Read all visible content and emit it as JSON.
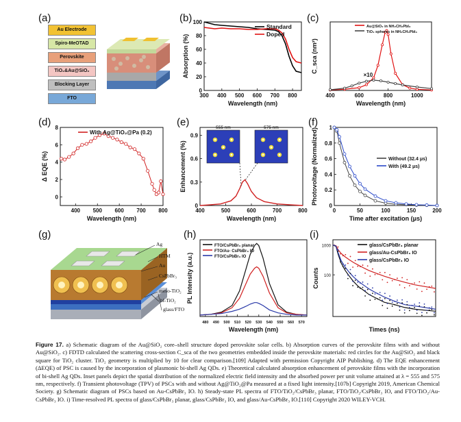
{
  "panels": {
    "a": {
      "label": "(a)",
      "layers": [
        "Au Electrode",
        "Spiro-MeOTAD",
        "Perovskite",
        "TiO₂&Au@SiO₂",
        "Blocking Layer",
        "FTO"
      ],
      "layer_colors": [
        "#f2c233",
        "#d7e7a6",
        "#e8a07a",
        "#f4c6c3",
        "#bfbfbf",
        "#78a8d8"
      ]
    },
    "b": {
      "label": "(b)",
      "chart_data": {
        "type": "line",
        "xlabel": "Wavelength (nm)",
        "ylabel": "Absorption (%)",
        "xlim": [
          300,
          850
        ],
        "ylim": [
          0,
          100
        ],
        "xticks": [
          300,
          400,
          500,
          600,
          700,
          800
        ],
        "yticks": [
          0,
          20,
          40,
          60,
          80,
          100
        ],
        "series": [
          {
            "name": "Standard",
            "color": "#000000",
            "x": [
              300,
              330,
              360,
              400,
              450,
              500,
              550,
              600,
              650,
              700,
              720,
              740,
              760,
              780,
              800,
              820,
              850
            ],
            "y": [
              100,
              98,
              96,
              95,
              94,
              93,
              92,
              90,
              89,
              88,
              86,
              80,
              68,
              50,
              36,
              28,
              26
            ]
          },
          {
            "name": "Doped",
            "color": "#e01010",
            "x": [
              300,
              330,
              360,
              400,
              450,
              500,
              550,
              600,
              650,
              700,
              720,
              740,
              760,
              780,
              800,
              820,
              850
            ],
            "y": [
              92,
              91,
              90,
              91,
              90,
              90,
              89,
              89,
              90,
              90,
              88,
              84,
              75,
              60,
              48,
              42,
              40
            ]
          }
        ]
      }
    },
    "c": {
      "label": "(c)",
      "chart_data": {
        "type": "line",
        "xlabel": "Wavelength (nm)",
        "ylabel": "C_sca (nm²)",
        "xlim": [
          400,
          1100
        ],
        "ylim": [
          0,
          300
        ],
        "xticks": [
          400,
          600,
          800,
          1000
        ],
        "annotation": "×10",
        "series": [
          {
            "name": "Au@SiO₂ in NH₂CH₂PbI₃",
            "color": "#e01010",
            "x": [
              400,
              500,
              600,
              650,
              700,
              730,
              760,
              780,
              790,
              800,
              820,
              850,
              900,
              950,
              1000,
              1100
            ],
            "y": [
              2,
              5,
              12,
              25,
              55,
              110,
              200,
              255,
              262,
              245,
              160,
              75,
              25,
              10,
              5,
              2
            ]
          },
          {
            "name": "TiO₂ spheres in NH₂CH₂PbI₃",
            "color": "#444444",
            "x": [
              400,
              500,
              550,
              600,
              650,
              700,
              750,
              800,
              850,
              900,
              1000,
              1100
            ],
            "y": [
              3,
              10,
              20,
              32,
              40,
              45,
              42,
              36,
              30,
              24,
              15,
              8
            ]
          }
        ]
      }
    },
    "d": {
      "label": "(d)",
      "chart_data": {
        "type": "line",
        "legend": "With Ag@TiO₂@Pa (0.2)",
        "xlabel": "Wavelength (nm)",
        "ylabel": "Δ EQE (%)",
        "xlim": [
          330,
          800
        ],
        "ylim": [
          -1,
          8
        ],
        "xticks": [
          400,
          500,
          600,
          700,
          800
        ],
        "yticks": [
          0,
          2,
          4,
          6,
          8
        ],
        "series": [
          {
            "name": "With Ag@TiO₂@Pa (0.2)",
            "color": "#d02020",
            "x": [
              335,
              350,
              370,
              390,
              410,
              430,
              450,
              470,
              490,
              510,
              530,
              550,
              570,
              590,
              610,
              630,
              650,
              670,
              690,
              710,
              730,
              750,
              760,
              770,
              780,
              790,
              800
            ],
            "y": [
              4.4,
              4.3,
              4.6,
              5.0,
              5.6,
              6.0,
              6.1,
              6.4,
              6.8,
              7.1,
              7.3,
              7.0,
              6.8,
              6.6,
              6.3,
              6.1,
              5.7,
              5.5,
              5.0,
              4.4,
              3.0,
              1.5,
              0.8,
              0.3,
              0.5,
              1.8,
              0.3
            ]
          }
        ]
      }
    },
    "e": {
      "label": "(e)",
      "inset_labels": [
        "555 nm",
        "575 nm"
      ],
      "chart_data": {
        "type": "line",
        "xlabel": "Wavelength (nm)",
        "ylabel": "Enhancement (%)",
        "xlim": [
          400,
          800
        ],
        "ylim": [
          0,
          1.0
        ],
        "xticks": [
          400,
          500,
          600,
          700,
          800
        ],
        "yticks": [
          0.0,
          0.3,
          0.6,
          0.9
        ],
        "series": [
          {
            "name": "Enhancement",
            "color": "#d02020",
            "x": [
              400,
              440,
              480,
              520,
              540,
              555,
              565,
              575,
              585,
              600,
              620,
              650,
              700,
              750,
              800
            ],
            "y": [
              0.0,
              0.01,
              0.02,
              0.06,
              0.12,
              0.22,
              0.3,
              0.33,
              0.28,
              0.18,
              0.1,
              0.05,
              0.02,
              0.01,
              0.0
            ]
          }
        ]
      }
    },
    "f": {
      "label": "(f)",
      "chart_data": {
        "type": "line",
        "xlabel": "Time after excitation (μs)",
        "ylabel": "Photovoltage (Normalized)",
        "xlim": [
          0,
          200
        ],
        "ylim": [
          0,
          1.0
        ],
        "xticks": [
          0,
          50,
          100,
          150,
          200
        ],
        "yticks": [
          0.0,
          0.2,
          0.4,
          0.6,
          0.8,
          1.0
        ],
        "series": [
          {
            "name": "Without (32.4 μs)",
            "color": "#444444",
            "x": [
              0,
              5,
              10,
              20,
              30,
              40,
              50,
              60,
              80,
              100,
              120,
              140,
              160,
              180,
              200
            ],
            "y": [
              1.0,
              0.95,
              0.8,
              0.55,
              0.38,
              0.26,
              0.18,
              0.13,
              0.06,
              0.03,
              0.015,
              0.01,
              0.005,
              0.003,
              0.0
            ]
          },
          {
            "name": "With (49.2 μs)",
            "color": "#2848c8",
            "x": [
              0,
              5,
              10,
              20,
              30,
              40,
              50,
              60,
              80,
              100,
              120,
              140,
              160,
              180,
              200
            ],
            "y": [
              1.0,
              0.97,
              0.88,
              0.66,
              0.5,
              0.38,
              0.28,
              0.21,
              0.12,
              0.06,
              0.035,
              0.02,
              0.01,
              0.006,
              0.0
            ]
          }
        ]
      }
    },
    "g": {
      "label": "(g)",
      "layer_labels": [
        "Ag",
        "HTM",
        "Au",
        "CsPbBr₃",
        "meso-TiO₂",
        "bl-TiO₂",
        "glass/FTO"
      ]
    },
    "h": {
      "label": "(h)",
      "chart_data": {
        "type": "line",
        "xlabel": "Wavelength (nm)",
        "ylabel": "PL Intensity (a.u.)",
        "xlim": [
          475,
          575
        ],
        "xticks": [
          480,
          490,
          500,
          510,
          520,
          530,
          540,
          550,
          560,
          570
        ],
        "series": [
          {
            "name": "FTO/CsPbBr₃ planar",
            "color": "#111111",
            "x": [
              475,
              485,
              495,
              505,
              512,
              518,
              522,
              526,
              528,
              530,
              534,
              540,
              548,
              556,
              565,
              575
            ],
            "y": [
              0.02,
              0.03,
              0.06,
              0.15,
              0.35,
              0.65,
              0.85,
              0.97,
              1.0,
              0.97,
              0.8,
              0.45,
              0.16,
              0.06,
              0.03,
              0.02
            ]
          },
          {
            "name": "FTO/Au- CsPbBr₃ IO",
            "color": "#d02020",
            "x": [
              475,
              485,
              495,
              505,
              512,
              518,
              522,
              526,
              528,
              530,
              534,
              540,
              548,
              556,
              565,
              575
            ],
            "y": [
              0.02,
              0.03,
              0.05,
              0.12,
              0.25,
              0.45,
              0.58,
              0.66,
              0.68,
              0.66,
              0.55,
              0.32,
              0.12,
              0.05,
              0.03,
              0.02
            ]
          },
          {
            "name": "FTO/CsPbBr₃ IO",
            "color": "#2838a8",
            "x": [
              475,
              485,
              495,
              505,
              512,
              518,
              522,
              526,
              528,
              530,
              534,
              540,
              548,
              556,
              565,
              575
            ],
            "y": [
              0.02,
              0.03,
              0.04,
              0.07,
              0.1,
              0.14,
              0.17,
              0.19,
              0.19,
              0.18,
              0.15,
              0.09,
              0.05,
              0.03,
              0.02,
              0.02
            ]
          }
        ]
      }
    },
    "i": {
      "label": "(i)",
      "chart_data": {
        "type": "line",
        "xlabel": "Times (ns)",
        "ylabel": "Counts",
        "xlim": [
          0,
          100
        ],
        "yticks": [
          "1000",
          "100"
        ],
        "series": [
          {
            "name": "glass/CsPbBr₃ planar",
            "color": "#111111",
            "x": [
              0,
              3,
              5,
              8,
              12,
              16,
              20,
              25,
              30,
              35,
              40,
              50,
              60,
              70,
              80,
              100
            ],
            "y": [
              1000,
              900,
              500,
              250,
              140,
              90,
              60,
              40,
              30,
              22,
              18,
              12,
              10,
              8,
              7,
              6
            ]
          },
          {
            "name": "glass/Au-CsPbBr₃ IO",
            "color": "#d02020",
            "x": [
              0,
              3,
              5,
              8,
              12,
              16,
              20,
              25,
              30,
              35,
              40,
              50,
              60,
              70,
              80,
              100
            ],
            "y": [
              1000,
              950,
              700,
              520,
              400,
              320,
              260,
              210,
              170,
              140,
              120,
              90,
              70,
              56,
              46,
              35
            ]
          },
          {
            "name": "glass/CsPbBr₃ IO",
            "color": "#2838a8",
            "x": [
              0,
              3,
              5,
              8,
              12,
              16,
              20,
              25,
              30,
              35,
              40,
              50,
              60,
              70,
              80,
              100
            ],
            "y": [
              1000,
              920,
              560,
              300,
              180,
              120,
              85,
              60,
              45,
              34,
              27,
              18,
              13,
              10,
              9,
              7
            ]
          }
        ]
      }
    }
  },
  "caption": {
    "figure_label": "Figure 17.",
    "text": "a) Schematic diagram of the Au@SiO₂ core–shell structure doped perovskite solar cells. b) Absorption curves of the perovskite films with and without Au@SiO₂. c) FDTD calculated the scattering cross-section C_sca of the two geometries embedded inside the perovskite materials: red circles for the Au@SiO₂ and black square for TiO₂ cluster. TiO₂ geometry is multiplied by 10 for clear comparison.[109] Adapted with permission Copyright AIP Publishing. d) The EQE enhancement (ΔEQE) of PSC is caused by the incorporation of plasmonic bi-shell Ag QDs. e) Theoretical calculated absorption enhancement of perovskite films with the incorporation of bi-shell Ag QDs. Inset panels depict the spatial distribution of the normalized electric field intensity and the absorbed power per unit volume attained at λ = 555 and 575 nm, respectively. f) Transient photovoltage (TPV) of PSCs with and without Ag@TiO₂@Pa measured at a fixed light intensity.[107b] Copyright 2019, American Chemical Society. g) Schematic diagram of PSCs based on Au-CsPbBr₃ IO. h) Steady-state PL spectra of FTO/TiO₂/CsPbBr₃ planar, FTO/TiO₂/CsPbBr₃ IO, and FTO/TiO₂/Au-CsPbBr₃ IO. i) Time-resolved PL spectra of glass/CsPbBr₃ planar, glass/CsPbBr₃ IO, and glass/Au-CsPbBr₃ IO.[110] Copyright 2020 WILEY-VCH."
  }
}
